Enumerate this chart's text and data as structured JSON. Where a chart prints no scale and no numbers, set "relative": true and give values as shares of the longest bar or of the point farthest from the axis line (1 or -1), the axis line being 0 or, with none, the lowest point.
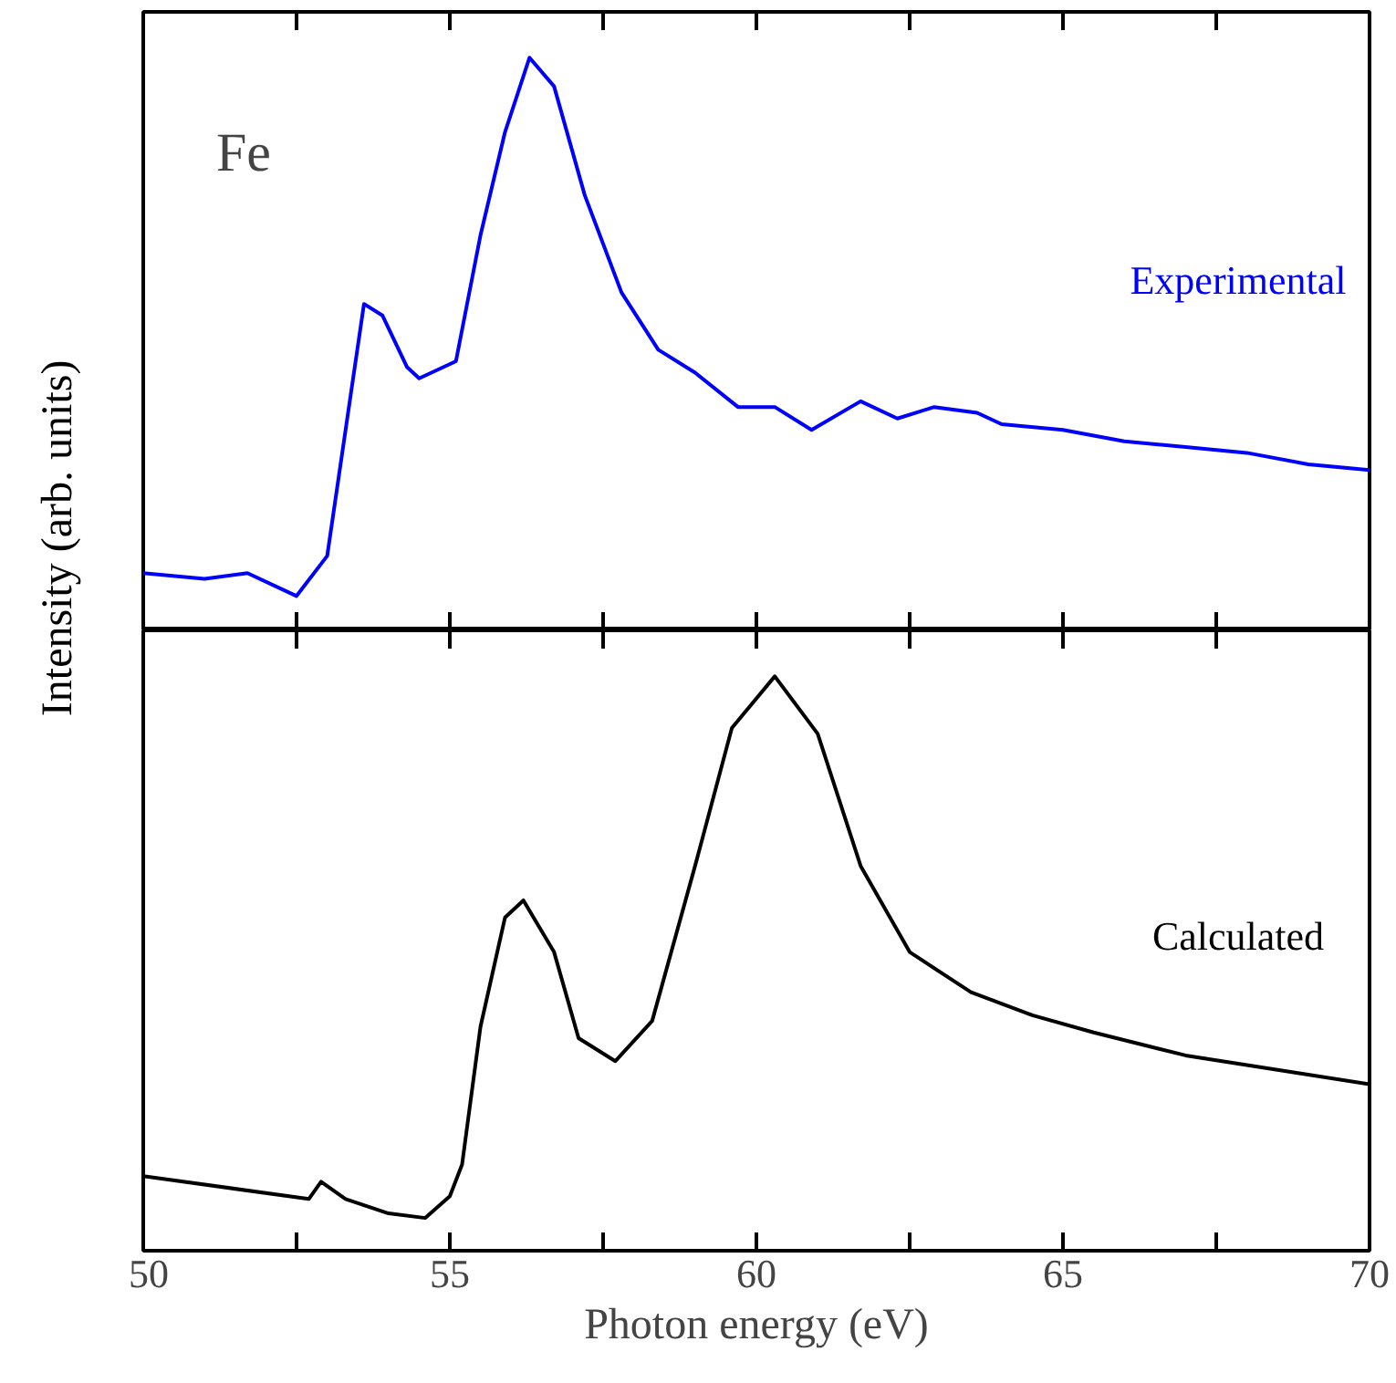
{
  "chart_data": [
    {
      "type": "line",
      "ylabel": "Intensity (arb. units)",
      "annotations": [
        "Fe"
      ],
      "relative": true,
      "tick_labels": false,
      "xlim": [
        50,
        70
      ],
      "xticks": [
        {
          "value": 50,
          "label": null
        },
        {
          "value": 52.5,
          "label": null
        },
        {
          "value": 55,
          "label": null
        },
        {
          "value": 57.5,
          "label": null
        },
        {
          "value": 60,
          "label": null
        },
        {
          "value": 62.5,
          "label": null
        },
        {
          "value": 65,
          "label": null
        },
        {
          "value": 67.5,
          "label": null
        },
        {
          "value": 70,
          "label": null
        }
      ],
      "x": [
        50,
        51,
        51.7,
        52.5,
        53,
        53.3,
        53.6,
        53.9,
        54.3,
        54.5,
        55.1,
        55.5,
        55.9,
        56.3,
        56.7,
        57.2,
        57.8,
        58.4,
        59,
        59.7,
        60.3,
        60.9,
        61.7,
        62.3,
        62.9,
        63.6,
        64,
        65,
        66,
        67,
        68,
        69,
        70
      ],
      "series": [
        {
          "name": "Experimental",
          "color": "#0000ff",
          "values": [
            0.1,
            0.09,
            0.1,
            0.06,
            0.13,
            0.35,
            0.57,
            0.55,
            0.46,
            0.44,
            0.47,
            0.69,
            0.87,
            1.0,
            0.95,
            0.76,
            0.59,
            0.49,
            0.45,
            0.39,
            0.39,
            0.35,
            0.4,
            0.37,
            0.39,
            0.38,
            0.36,
            0.35,
            0.33,
            0.32,
            0.31,
            0.29,
            0.28
          ]
        }
      ]
    },
    {
      "type": "line",
      "xlabel": "Photon energy (eV)",
      "relative": true,
      "tick_labels": "x",
      "xlim": [
        50,
        70
      ],
      "xticks": [
        50,
        {
          "value": 52.5,
          "label": null
        },
        55,
        {
          "value": 57.5,
          "label": null
        },
        60,
        {
          "value": 62.5,
          "label": null
        },
        65,
        {
          "value": 67.5,
          "label": null
        },
        70
      ],
      "x": [
        50,
        52.7,
        52.9,
        53.3,
        54,
        54.6,
        55,
        55.2,
        55.5,
        55.9,
        56.2,
        56.7,
        57.1,
        57.7,
        58.3,
        59,
        59.6,
        60.3,
        61,
        61.7,
        62.5,
        63.5,
        64.5,
        65.5,
        67,
        68.5,
        70
      ],
      "series": [
        {
          "name": "Calculated",
          "color": "#000000",
          "values": [
            0.13,
            0.09,
            0.12,
            0.09,
            0.065,
            0.057,
            0.095,
            0.15,
            0.39,
            0.58,
            0.61,
            0.52,
            0.37,
            0.33,
            0.4,
            0.67,
            0.91,
            1.0,
            0.9,
            0.67,
            0.52,
            0.45,
            0.41,
            0.38,
            0.34,
            0.315,
            0.29
          ]
        }
      ]
    }
  ]
}
